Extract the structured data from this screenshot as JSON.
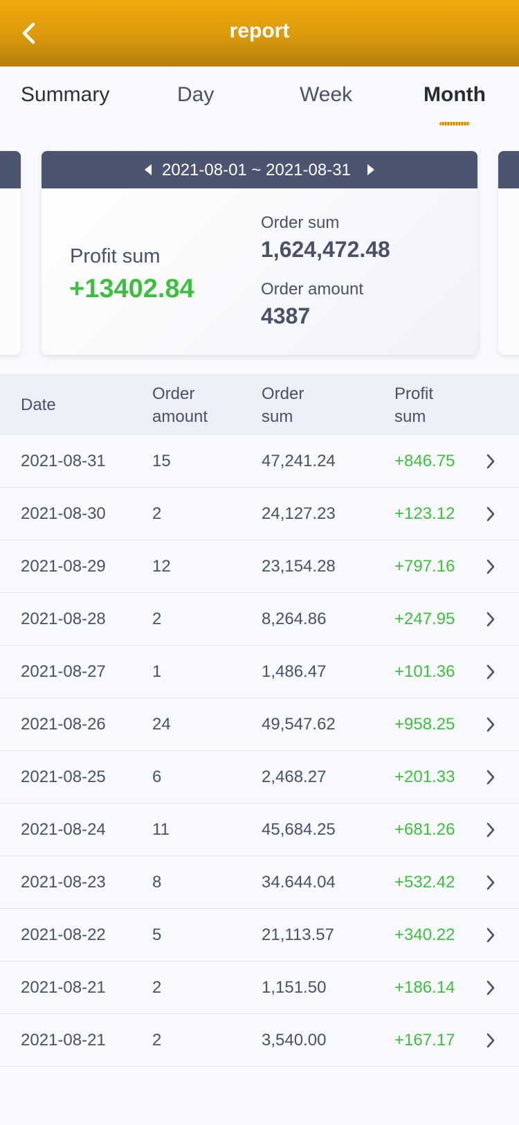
{
  "header": {
    "title": "report",
    "back_icon": "back-arrow-icon"
  },
  "tabs": [
    {
      "label": "Summary",
      "active": false
    },
    {
      "label": "Day",
      "active": false
    },
    {
      "label": "Week",
      "active": false
    },
    {
      "label": "Month",
      "active": true
    }
  ],
  "card": {
    "range": "2021-08-01 ~ 2021-08-31",
    "profit_label": "Profit sum",
    "profit_value": "+13402.84",
    "order_sum_label": "Order sum",
    "order_sum_value": "1,624,472.48",
    "order_amount_label": "Order amount",
    "order_amount_value": "4387"
  },
  "table": {
    "headers": {
      "date": "Date",
      "amount_1": "Order",
      "amount_2": "amount",
      "sum_1": "Order",
      "sum_2": "sum",
      "profit_1": "Profit",
      "profit_2": "sum"
    },
    "rows": [
      {
        "date": "2021-08-31",
        "amount": "15",
        "sum": "47,241.24",
        "profit": "+846.75"
      },
      {
        "date": "2021-08-30",
        "amount": "2",
        "sum": "24,127.23",
        "profit": "+123.12"
      },
      {
        "date": "2021-08-29",
        "amount": "12",
        "sum": "23,154.28",
        "profit": "+797.16"
      },
      {
        "date": "2021-08-28",
        "amount": "2",
        "sum": "8,264.86",
        "profit": "+247.95"
      },
      {
        "date": "2021-08-27",
        "amount": "1",
        "sum": "1,486.47",
        "profit": "+101.36"
      },
      {
        "date": "2021-08-26",
        "amount": "24",
        "sum": "49,547.62",
        "profit": "+958.25"
      },
      {
        "date": "2021-08-25",
        "amount": "6",
        "sum": "2,468.27",
        "profit": "+201.33"
      },
      {
        "date": "2021-08-24",
        "amount": "11",
        "sum": "45,684.25",
        "profit": "+681.26"
      },
      {
        "date": "2021-08-23",
        "amount": "8",
        "sum": "34.644.04",
        "profit": "+532.42"
      },
      {
        "date": "2021-08-22",
        "amount": "5",
        "sum": "21,113.57",
        "profit": "+340.22"
      },
      {
        "date": "2021-08-21",
        "amount": "2",
        "sum": "1,151.50",
        "profit": "+186.14"
      },
      {
        "date": "2021-08-21",
        "amount": "2",
        "sum": "3,540.00",
        "profit": "+167.17"
      }
    ]
  },
  "colors": {
    "accent": "#f0aa0b",
    "profit": "#3fbf3f",
    "card_bar": "#4c5570",
    "text": "#4a5068"
  }
}
